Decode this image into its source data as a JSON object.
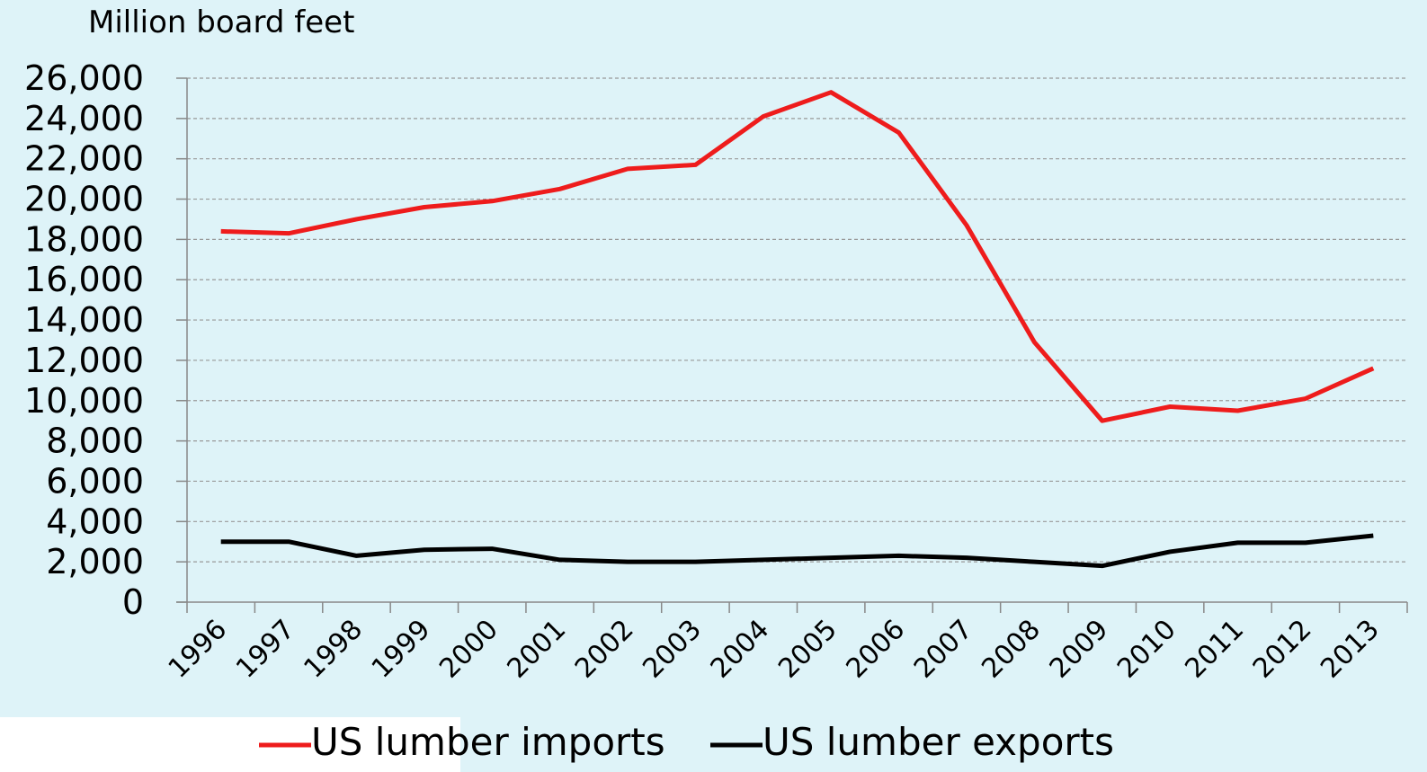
{
  "chart_data": {
    "type": "line",
    "y_axis_label": "Million board feet",
    "categories": [
      "1996",
      "1997",
      "1998",
      "1999",
      "2000",
      "2001",
      "2002",
      "2003",
      "2004",
      "2005",
      "2006",
      "2007",
      "2008",
      "2009",
      "2010",
      "2011",
      "2012",
      "2013"
    ],
    "series": [
      {
        "name": "US lumber imports",
        "color": "#ee1c1c",
        "values": [
          18400,
          18300,
          19000,
          19600,
          19900,
          20500,
          21500,
          21700,
          24100,
          25300,
          23300,
          18700,
          12900,
          9000,
          9700,
          9500,
          10100,
          11600
        ]
      },
      {
        "name": "US lumber exports",
        "color": "#000000",
        "values": [
          3000,
          3000,
          2300,
          2600,
          2650,
          2100,
          2000,
          2000,
          2100,
          2200,
          2300,
          2200,
          2000,
          1800,
          2500,
          2950,
          2950,
          3300
        ]
      }
    ],
    "ylim": [
      0,
      26000
    ],
    "yticks": [
      0,
      {
        "value": 2000,
        "label": "2,000"
      },
      {
        "value": 4000,
        "label": "4,000"
      },
      {
        "value": 6000,
        "label": "6,000"
      },
      {
        "value": 8000,
        "label": "8,000"
      },
      {
        "value": 10000,
        "label": "10,000"
      },
      {
        "value": 12000,
        "label": "12,000"
      },
      {
        "value": 14000,
        "label": "14,000"
      },
      {
        "value": 16000,
        "label": "16,000"
      },
      {
        "value": 18000,
        "label": "18,000"
      },
      {
        "value": 20000,
        "label": "20,000"
      },
      {
        "value": 22000,
        "label": "22,000"
      },
      {
        "value": 24000,
        "label": "24,000"
      },
      {
        "value": 26000,
        "label": "26,000"
      }
    ],
    "grid": true,
    "legend": "bottom"
  }
}
